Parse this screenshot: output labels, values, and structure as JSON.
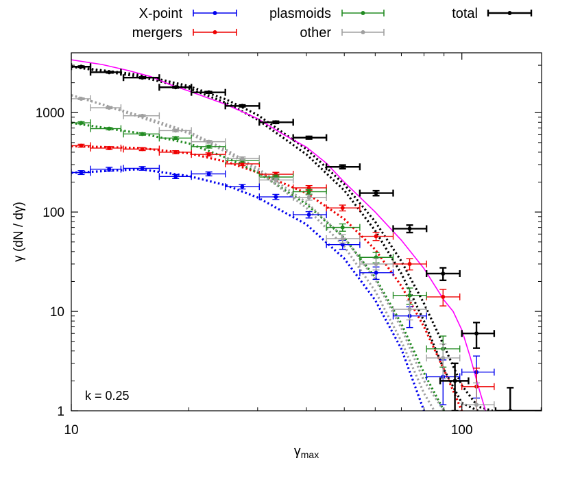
{
  "chart_data": {
    "type": "scatter",
    "xlabel": "γ",
    "xlabel_sub": "max",
    "ylabel": "γ (dN / dγ)",
    "xscale": "log",
    "yscale": "log",
    "xlim": [
      10,
      160
    ],
    "ylim": [
      1,
      4000
    ],
    "xticks": [
      10,
      100
    ],
    "xtick_labels": [
      "10",
      "100"
    ],
    "yticks": [
      1,
      10,
      100,
      1000
    ],
    "ytick_labels": [
      "1",
      "10",
      "100",
      "1000"
    ],
    "annotation": "k = 0.25",
    "legend_position": "top",
    "grid": false,
    "series": [
      {
        "name": "X-point",
        "color": "#0000ee",
        "points": [
          {
            "x": 10.6,
            "y": 250,
            "xlo": 10.0,
            "xhi": 11.2
          },
          {
            "x": 12.5,
            "y": 270,
            "xlo": 11.2,
            "xhi": 13.4
          },
          {
            "x": 15.2,
            "y": 275,
            "xlo": 13.6,
            "xhi": 16.8
          },
          {
            "x": 18.5,
            "y": 228,
            "xlo": 16.8,
            "xhi": 20.3
          },
          {
            "x": 22.5,
            "y": 242,
            "xlo": 20.3,
            "xhi": 24.8
          },
          {
            "x": 27.4,
            "y": 180,
            "xlo": 24.8,
            "xhi": 30.3
          },
          {
            "x": 33.4,
            "y": 142,
            "xlo": 30.3,
            "xhi": 37.0
          },
          {
            "x": 40.6,
            "y": 94,
            "xlo": 37.0,
            "xhi": 45.0
          },
          {
            "x": 49.5,
            "y": 47,
            "xlo": 45.0,
            "xhi": 54.8
          },
          {
            "x": 60.3,
            "y": 24.5,
            "xlo": 54.8,
            "xhi": 66.7
          },
          {
            "x": 73.5,
            "y": 9,
            "xlo": 66.7,
            "xhi": 81.2
          },
          {
            "x": 89.5,
            "y": 2.2,
            "xlo": 81.2,
            "xhi": 98.8
          },
          {
            "x": 109.0,
            "y": 2.45,
            "xlo": 100.0,
            "xhi": 121.0
          }
        ],
        "fits": [
          {
            "x": [
              10,
              15,
              20,
              25,
              30,
              40,
              50,
              60,
              70,
              80
            ],
            "y": [
              248,
              270,
              230,
              185,
              140,
              75,
              34,
              13,
              4.2,
              1
            ]
          }
        ]
      },
      {
        "name": "mergers",
        "color": "#ee0000",
        "points": [
          {
            "x": 10.6,
            "y": 465,
            "xlo": 10.0,
            "xhi": 11.2
          },
          {
            "x": 12.5,
            "y": 440,
            "xlo": 11.2,
            "xhi": 13.4
          },
          {
            "x": 15.2,
            "y": 430,
            "xlo": 13.6,
            "xhi": 16.8
          },
          {
            "x": 18.5,
            "y": 400,
            "xlo": 16.8,
            "xhi": 20.3
          },
          {
            "x": 22.5,
            "y": 380,
            "xlo": 20.3,
            "xhi": 24.8
          },
          {
            "x": 27.4,
            "y": 305,
            "xlo": 24.8,
            "xhi": 30.3
          },
          {
            "x": 33.4,
            "y": 240,
            "xlo": 30.3,
            "xhi": 37.0
          },
          {
            "x": 40.6,
            "y": 175,
            "xlo": 37.0,
            "xhi": 45.0
          },
          {
            "x": 49.5,
            "y": 110,
            "xlo": 45.0,
            "xhi": 54.8
          },
          {
            "x": 60.3,
            "y": 57,
            "xlo": 54.8,
            "xhi": 66.7
          },
          {
            "x": 73.5,
            "y": 30,
            "xlo": 66.7,
            "xhi": 81.2
          },
          {
            "x": 89.5,
            "y": 14,
            "xlo": 81.2,
            "xhi": 98.8
          },
          {
            "x": 109.0,
            "y": 1.75,
            "xlo": 100.0,
            "xhi": 121.0
          }
        ],
        "fits": [
          {
            "x": [
              10,
              15,
              20,
              25,
              30,
              40,
              50,
              60,
              70,
              80,
              90,
              100
            ],
            "y": [
              460,
              440,
              390,
              320,
              250,
              155,
              85,
              42,
              18,
              7,
              2.6,
              1
            ]
          }
        ]
      },
      {
        "name": "plasmoids",
        "color": "#228b22",
        "points": [
          {
            "x": 10.6,
            "y": 790,
            "xlo": 10.0,
            "xhi": 11.2
          },
          {
            "x": 12.5,
            "y": 690,
            "xlo": 11.2,
            "xhi": 13.4
          },
          {
            "x": 15.2,
            "y": 610,
            "xlo": 13.6,
            "xhi": 16.8
          },
          {
            "x": 18.5,
            "y": 555,
            "xlo": 16.8,
            "xhi": 20.3
          },
          {
            "x": 22.5,
            "y": 455,
            "xlo": 20.3,
            "xhi": 24.8
          },
          {
            "x": 27.4,
            "y": 330,
            "xlo": 24.8,
            "xhi": 30.3
          },
          {
            "x": 33.4,
            "y": 225,
            "xlo": 30.3,
            "xhi": 37.0
          },
          {
            "x": 40.6,
            "y": 160,
            "xlo": 37.0,
            "xhi": 45.0
          },
          {
            "x": 49.5,
            "y": 70,
            "xlo": 45.0,
            "xhi": 54.8
          },
          {
            "x": 60.3,
            "y": 35,
            "xlo": 54.8,
            "xhi": 66.7
          },
          {
            "x": 73.5,
            "y": 14.5,
            "xlo": 66.7,
            "xhi": 81.2
          },
          {
            "x": 89.5,
            "y": 4.2,
            "xlo": 81.2,
            "xhi": 98.8
          }
        ],
        "fits": [
          {
            "x": [
              10,
              15,
              20,
              25,
              30,
              40,
              50,
              60,
              70,
              80,
              90
            ],
            "y": [
              790,
              620,
              490,
              350,
              250,
              120,
              55,
              22,
              7.5,
              2.4,
              1
            ]
          }
        ]
      },
      {
        "name": "other",
        "color": "#a0a0a0",
        "points": [
          {
            "x": 10.6,
            "y": 1380,
            "xlo": 10.0,
            "xhi": 11.2
          },
          {
            "x": 12.5,
            "y": 1120,
            "xlo": 11.2,
            "xhi": 13.4
          },
          {
            "x": 15.2,
            "y": 930,
            "xlo": 13.6,
            "xhi": 16.8
          },
          {
            "x": 18.5,
            "y": 660,
            "xlo": 16.8,
            "xhi": 20.3
          },
          {
            "x": 22.5,
            "y": 510,
            "xlo": 20.3,
            "xhi": 24.8
          },
          {
            "x": 27.4,
            "y": 345,
            "xlo": 24.8,
            "xhi": 30.3
          },
          {
            "x": 33.4,
            "y": 210,
            "xlo": 30.3,
            "xhi": 37.0
          },
          {
            "x": 40.6,
            "y": 140,
            "xlo": 37.0,
            "xhi": 45.0
          },
          {
            "x": 49.5,
            "y": 54,
            "xlo": 45.0,
            "xhi": 54.8
          },
          {
            "x": 60.3,
            "y": 30,
            "xlo": 54.8,
            "xhi": 66.7
          },
          {
            "x": 73.5,
            "y": 10.5,
            "xlo": 66.7,
            "xhi": 81.2
          },
          {
            "x": 89.5,
            "y": 3.4,
            "xlo": 81.2,
            "xhi": 98.8
          },
          {
            "x": 109.0,
            "y": 1.15,
            "xlo": 100.0,
            "xhi": 121.0
          }
        ],
        "fits": [
          {
            "x": [
              10,
              12.5,
              15,
              20,
              25,
              30,
              40,
              50,
              60,
              70,
              80,
              85
            ],
            "y": [
              1500,
              1150,
              900,
              620,
              400,
              260,
              110,
              45,
              16,
              5,
              1.5,
              1
            ]
          },
          {
            "x": [
              10,
              15,
              20,
              25,
              30,
              40,
              50,
              60,
              70,
              80,
              90
            ],
            "y": [
              1500,
              930,
              640,
              420,
              275,
              125,
              55,
              21,
              6.8,
              2,
              1
            ]
          }
        ]
      },
      {
        "name": "total",
        "color": "#000000",
        "points": [
          {
            "x": 10.6,
            "y": 2900,
            "xlo": 10.0,
            "xhi": 11.2
          },
          {
            "x": 12.5,
            "y": 2550,
            "xlo": 11.2,
            "xhi": 13.4
          },
          {
            "x": 15.2,
            "y": 2250,
            "xlo": 13.6,
            "xhi": 16.8
          },
          {
            "x": 18.5,
            "y": 1800,
            "xlo": 16.8,
            "xhi": 20.3
          },
          {
            "x": 22.5,
            "y": 1600,
            "xlo": 20.3,
            "xhi": 24.8
          },
          {
            "x": 27.4,
            "y": 1170,
            "xlo": 24.8,
            "xhi": 30.3
          },
          {
            "x": 33.4,
            "y": 800,
            "xlo": 30.3,
            "xhi": 37.0
          },
          {
            "x": 40.6,
            "y": 560,
            "xlo": 37.0,
            "xhi": 45.0
          },
          {
            "x": 49.5,
            "y": 285,
            "xlo": 45.0,
            "xhi": 54.8
          },
          {
            "x": 60.3,
            "y": 155,
            "xlo": 54.8,
            "xhi": 66.7
          },
          {
            "x": 73.5,
            "y": 68,
            "xlo": 66.7,
            "xhi": 81.2
          },
          {
            "x": 89.5,
            "y": 24,
            "xlo": 81.2,
            "xhi": 98.8
          },
          {
            "x": 96.0,
            "y": 2.0,
            "xlo": 88.0,
            "xhi": 104.0
          },
          {
            "x": 109.0,
            "y": 6.0,
            "xlo": 100.0,
            "xhi": 121.0
          },
          {
            "x": 133.0,
            "y": 1.0,
            "xlo": 122.0,
            "xhi": 160.0
          }
        ],
        "fits": [
          {
            "x": [
              10,
              15,
              20,
              25,
              30,
              40,
              50,
              60,
              70,
              80,
              90,
              100,
              110,
              120
            ],
            "y": [
              2900,
              2400,
              1850,
              1350,
              950,
              430,
              190,
              80,
              32,
              12,
              4.5,
              1.8,
              1.1,
              1
            ]
          },
          {
            "x": [
              10,
              15,
              20,
              25,
              30,
              40,
              50,
              60,
              70,
              80,
              90,
              100,
              110
            ],
            "y": [
              2900,
              2300,
              1750,
              1250,
              850,
              380,
              165,
              65,
              24,
              8,
              2.6,
              1.2,
              1
            ]
          }
        ]
      }
    ],
    "reference_curve": {
      "color": "#ff00ff",
      "x": [
        10,
        12,
        14,
        16,
        18,
        20,
        25,
        30,
        35,
        40,
        45,
        50,
        60,
        70,
        80,
        90,
        95,
        100,
        105,
        110,
        115
      ],
      "y": [
        3400,
        3050,
        2650,
        2300,
        1900,
        1650,
        1200,
        870,
        600,
        450,
        310,
        200,
        100,
        52,
        27,
        13,
        10,
        6.5,
        3.5,
        1.8,
        1
      ]
    }
  }
}
